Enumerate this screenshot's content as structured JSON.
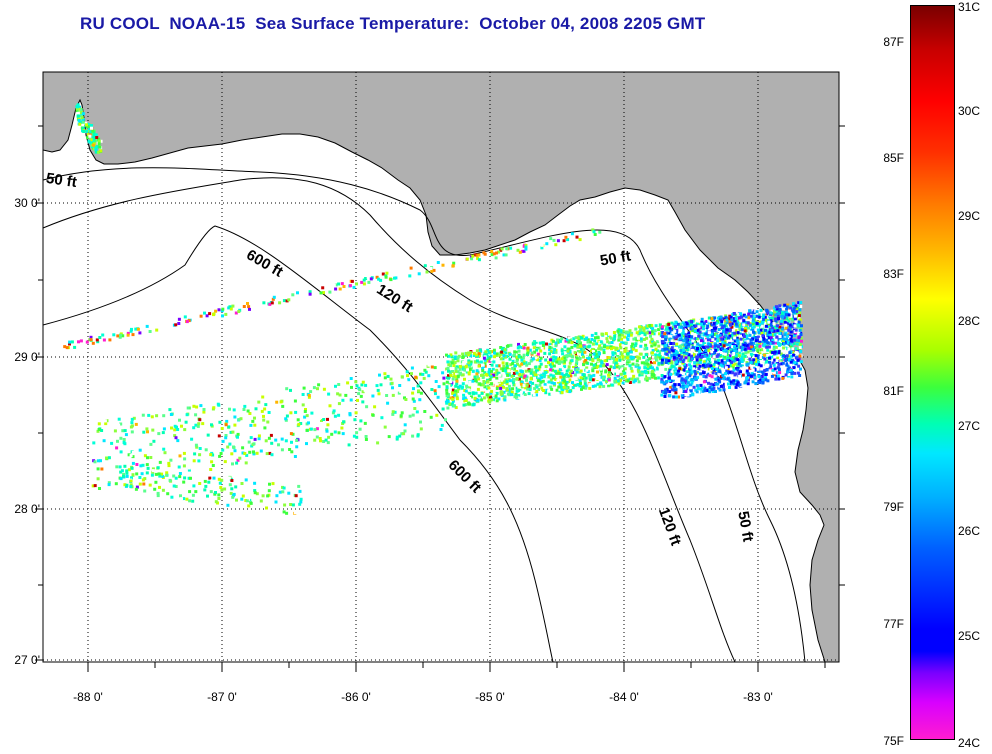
{
  "title": "RU COOL  NOAA-15  Sea Surface Temperature:  October 04, 2008 2205 GMT",
  "map": {
    "lat_labels": [
      "30 0'",
      "29 0'",
      "28 0'",
      "27 0'"
    ],
    "lon_labels": [
      "-88 0'",
      "-87 0'",
      "-86 0'",
      "-85 0'",
      "-84 0'",
      "-83 0'"
    ],
    "isobath_labels": [
      "50 ft",
      "600 ft",
      "120 ft",
      "50 ft",
      "600 ft",
      "120 ft",
      "50 ft"
    ],
    "land_color": "#b0b0b0",
    "water_color": "#ffffff"
  },
  "colorbar": {
    "fahrenheit": [
      "87F",
      "85F",
      "83F",
      "81F",
      "79F",
      "77F",
      "75F"
    ],
    "celsius": [
      "31C",
      "30C",
      "29C",
      "28C",
      "27C",
      "26C",
      "25C",
      "24C"
    ],
    "scale_min_c": 24,
    "scale_max_c": 31
  }
}
